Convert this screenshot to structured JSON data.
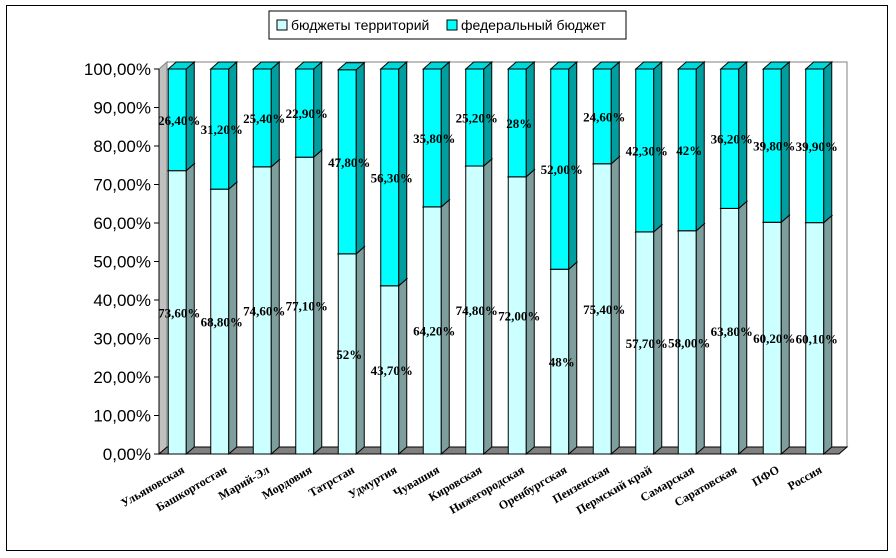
{
  "chart_data": {
    "type": "bar",
    "stacked": true,
    "percent": true,
    "three_d": true,
    "categories": [
      "Ульяновская",
      "Башкортостан",
      "Марий-Эл",
      "Мордовия",
      "Татрстан",
      "Удмуртия",
      "Чувашия",
      "Кировская",
      "Нижегородская",
      "Оренбургская",
      "Пензенская",
      "Пермский край",
      "Самарская",
      "Саратовская",
      "ПФО",
      "Россия"
    ],
    "series": [
      {
        "name": "бюджеты территорий",
        "color": "#ccffff",
        "values": [
          73.6,
          68.8,
          74.6,
          77.1,
          52.0,
          43.7,
          64.2,
          74.8,
          72.0,
          48.0,
          75.4,
          57.7,
          58.0,
          63.8,
          60.2,
          60.1
        ],
        "labels": [
          "73,60%",
          "68,80%",
          "74,60%",
          "77,10%",
          "52%",
          "43,70%",
          "64,20%",
          "74,80%",
          "72,00%",
          "48%",
          "75,40%",
          "57,70%",
          "58,00%",
          "63,80%",
          "60,20%",
          "60,10%"
        ]
      },
      {
        "name": "федеральный бюджет",
        "color": "#00ffff",
        "values": [
          26.4,
          31.2,
          25.4,
          22.9,
          47.8,
          56.3,
          35.8,
          25.2,
          28.0,
          52.0,
          24.6,
          42.3,
          42.0,
          36.2,
          39.8,
          39.9
        ],
        "labels": [
          "26,40%",
          "31,20%",
          "25,40%",
          "22,90%",
          "47,80%",
          "56,30%",
          "35,80%",
          "25,20%",
          "28%",
          "52,00%",
          "24,60%",
          "42,30%",
          "42%",
          "36,20%",
          "39,80%",
          "39,90%"
        ]
      }
    ],
    "y_ticks": [
      "0,00%",
      "10,00%",
      "20,00%",
      "30,00%",
      "40,00%",
      "50,00%",
      "60,00%",
      "70,00%",
      "80,00%",
      "90,00%",
      "100,00%"
    ],
    "ylim": [
      0,
      100
    ],
    "grid": false,
    "legend_position": "top"
  }
}
